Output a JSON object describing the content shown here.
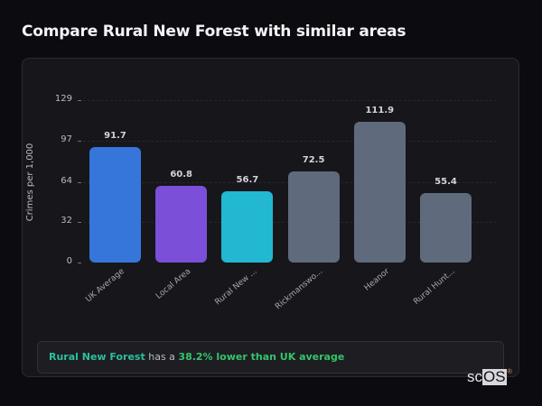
{
  "title": "Compare Rural New Forest with similar areas",
  "colors": {
    "uk_average": "#3676db",
    "local_area": "#7c4fd9",
    "selected": "#22b8d1",
    "others": "#5f6a7d",
    "highlight_text": "#2dbf9e",
    "stat_text": "#34c46a"
  },
  "chart_data": {
    "type": "bar",
    "title": "",
    "xlabel": "",
    "ylabel": "Crimes per 1,000",
    "categories": [
      "UK Average",
      "Local Area",
      "Rural New ...",
      "Rickmanswo...",
      "Heanor",
      "Rural Hunt..."
    ],
    "values": [
      91.7,
      60.8,
      56.7,
      72.5,
      111.9,
      55.4
    ],
    "value_labels": [
      "91.7",
      "60.8",
      "56.7",
      "72.5",
      "111.9",
      "55.4"
    ],
    "bar_colors": [
      "#3676db",
      "#7c4fd9",
      "#22b8d1",
      "#5f6a7d",
      "#5f6a7d",
      "#5f6a7d"
    ],
    "yticks": [
      "0",
      "32",
      "64",
      "97",
      "129"
    ],
    "ylim": [
      0,
      129
    ],
    "grid": true,
    "legend": "none"
  },
  "insight": {
    "area": "Rural New Forest",
    "connector": " has a ",
    "stat": "38.2% lower than UK average"
  },
  "logo": {
    "sc": "sc",
    "os": "OS",
    "reg": "®"
  }
}
